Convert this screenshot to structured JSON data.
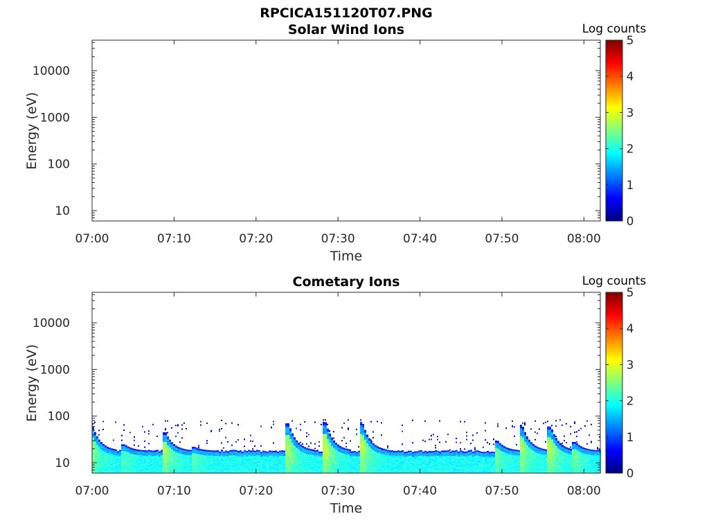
{
  "figure_title": "RPCICA151120T07.PNG",
  "colormap_stops": [
    "#00007f",
    "#0000ff",
    "#007fff",
    "#00ffff",
    "#7fff7f",
    "#ffff00",
    "#ff7f00",
    "#ff0000",
    "#7f0000"
  ],
  "chart_data": [
    {
      "type": "heatmap",
      "title": "Solar Wind Ions",
      "xlabel": "Time",
      "ylabel": "Energy (eV)",
      "y_scale": "log",
      "ylim": [
        6,
        45000
      ],
      "xlim": [
        "07:00",
        "08:02"
      ],
      "x_ticks": [
        "07:00",
        "07:10",
        "07:20",
        "07:30",
        "07:40",
        "07:50",
        "08:00"
      ],
      "y_ticks": [
        10,
        100,
        1000,
        10000
      ],
      "colorbar": {
        "label": "Log counts",
        "range": [
          0,
          5
        ],
        "ticks": [
          0,
          1,
          2,
          3,
          4,
          5
        ]
      },
      "features": []
    },
    {
      "type": "heatmap",
      "title": "Cometary Ions",
      "xlabel": "Time",
      "ylabel": "Energy (eV)",
      "y_scale": "log",
      "ylim": [
        6,
        45000
      ],
      "xlim": [
        "07:00",
        "08:02"
      ],
      "x_ticks": [
        "07:00",
        "07:10",
        "07:20",
        "07:30",
        "07:40",
        "07:50",
        "08:00"
      ],
      "y_ticks": [
        10,
        100,
        1000,
        10000
      ],
      "colorbar": {
        "label": "Log counts",
        "range": [
          0,
          5
        ],
        "ticks": [
          0,
          1,
          2,
          3,
          4,
          5
        ]
      },
      "background_band": {
        "energy_range": [
          6,
          20
        ],
        "log_counts": 1.9
      },
      "lower_edge_level": 18,
      "noise_ceiling": 80,
      "features": [
        {
          "time": "07:00",
          "peak_energy": 70,
          "log_counts": 2.6
        },
        {
          "time": "07:04",
          "peak_energy": 25,
          "log_counts": 2.2
        },
        {
          "time": "07:09",
          "peak_energy": 45,
          "log_counts": 2.7
        },
        {
          "time": "07:12.5",
          "peak_energy": 22,
          "log_counts": 2.3
        },
        {
          "time": "07:24",
          "peak_energy": 70,
          "log_counts": 2.7
        },
        {
          "time": "07:28.5",
          "peak_energy": 75,
          "log_counts": 2.9
        },
        {
          "time": "07:33",
          "peak_energy": 75,
          "log_counts": 2.8
        },
        {
          "time": "07:49.5",
          "peak_energy": 30,
          "log_counts": 2.4
        },
        {
          "time": "07:52.5",
          "peak_energy": 65,
          "log_counts": 2.7
        },
        {
          "time": "07:56",
          "peak_energy": 60,
          "log_counts": 2.7
        },
        {
          "time": "07:59",
          "peak_energy": 28,
          "log_counts": 2.4
        }
      ]
    }
  ]
}
